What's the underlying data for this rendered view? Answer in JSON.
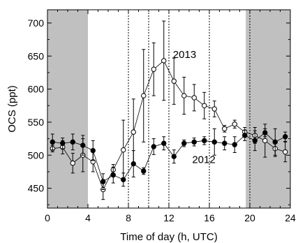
{
  "chart_data": {
    "type": "scatter",
    "xlabel": "Time of day (h, UTC)",
    "ylabel": "OCS (ppt)",
    "xlim": [
      0,
      24
    ],
    "ylim": [
      420,
      720
    ],
    "xticks": [
      0,
      4,
      8,
      12,
      16,
      20,
      24
    ],
    "yticks": [
      450,
      500,
      550,
      600,
      650,
      700
    ],
    "grid": false,
    "shaded_intervals": [
      [
        0,
        4
      ],
      [
        19.6,
        24
      ]
    ],
    "shade_color": "#c0c0c0",
    "dotted_vlines": [
      8,
      10,
      12,
      16,
      20
    ],
    "series": [
      {
        "name": "2013",
        "marker": "open-circle",
        "color": "#000000",
        "x": [
          0.5,
          1.5,
          2.5,
          3.5,
          4.5,
          5.5,
          6.5,
          7.5,
          8.5,
          9.5,
          10.5,
          11.5,
          12.5,
          13.5,
          14.5,
          15.5,
          16.5,
          17.5,
          18.5,
          19.5,
          20.5,
          21.5,
          22.5,
          23.5
        ],
        "y": [
          510,
          512,
          488,
          500,
          490,
          448,
          478,
          508,
          535,
          590,
          630,
          643,
          612,
          590,
          587,
          575,
          570,
          540,
          547,
          535,
          530,
          522,
          510,
          505
        ],
        "err": [
          5,
          10,
          15,
          25,
          15,
          15,
          8,
          45,
          50,
          70,
          40,
          60,
          35,
          28,
          20,
          20,
          12,
          5,
          6,
          7,
          12,
          25,
          12,
          15
        ]
      },
      {
        "name": "2012",
        "marker": "filled-circle",
        "color": "#000000",
        "x": [
          0.5,
          1.5,
          2.5,
          3.5,
          4.5,
          5.5,
          6.5,
          7.5,
          8.5,
          9.5,
          10.5,
          11.5,
          12.5,
          13.5,
          14.5,
          15.5,
          16.5,
          17.5,
          18.5,
          19.5,
          20.5,
          21.5,
          22.5,
          23.5
        ],
        "y": [
          520,
          518,
          520,
          515,
          507,
          460,
          470,
          463,
          487,
          476,
          513,
          518,
          498,
          518,
          520,
          522,
          520,
          518,
          516,
          530,
          522,
          534,
          520,
          528
        ],
        "err": [
          12,
          8,
          12,
          15,
          15,
          12,
          12,
          10,
          20,
          5,
          12,
          10,
          10,
          5,
          6,
          6,
          20,
          10,
          12,
          8,
          15,
          6,
          20,
          7
        ]
      }
    ],
    "series_labels": [
      {
        "text": "2013",
        "x": 12.4,
        "y": 647
      },
      {
        "text": "2012",
        "x": 14.3,
        "y": 488
      }
    ]
  }
}
